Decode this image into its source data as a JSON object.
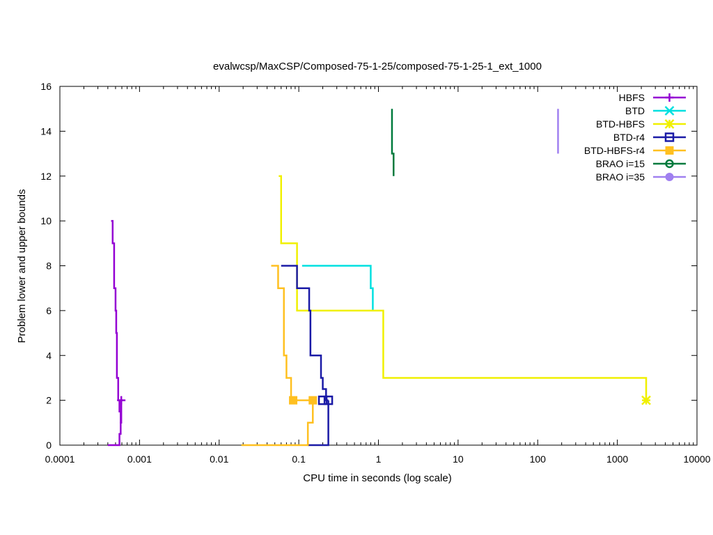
{
  "chart_data": {
    "type": "line",
    "title": "evalwcsp/MaxCSP/Composed-75-1-25/composed-75-1-25-1_ext_1000",
    "xlabel": "CPU time in seconds (log scale)",
    "ylabel": "Problem lower and upper bounds",
    "xscale": "log",
    "xlim": [
      0.0001,
      10000
    ],
    "ylim": [
      0,
      16
    ],
    "x_ticks": [
      0.0001,
      0.001,
      0.01,
      0.1,
      1,
      10,
      100,
      1000,
      10000
    ],
    "x_tick_labels": [
      "0.0001",
      "0.001",
      "0.01",
      "0.1",
      "1",
      "10",
      "100",
      "1000",
      "10000"
    ],
    "y_ticks": [
      0,
      2,
      4,
      6,
      8,
      10,
      12,
      14,
      16
    ],
    "y_tick_labels": [
      "0",
      "2",
      "4",
      "6",
      "8",
      "10",
      "12",
      "14",
      "16"
    ],
    "grid": false,
    "legend_position": "top-right",
    "series": [
      {
        "name": "HBFS",
        "color": "#9400d3",
        "marker": "plus",
        "upper": [
          [
            0.00044,
            10
          ],
          [
            0.00046,
            10
          ],
          [
            0.00046,
            9
          ],
          [
            0.00048,
            9
          ],
          [
            0.00048,
            7
          ],
          [
            0.0005,
            7
          ],
          [
            0.0005,
            6
          ],
          [
            0.00051,
            6
          ],
          [
            0.00051,
            5
          ],
          [
            0.00052,
            5
          ],
          [
            0.00052,
            3
          ],
          [
            0.00054,
            3
          ],
          [
            0.00054,
            2
          ],
          [
            0.00056,
            2
          ],
          [
            0.00056,
            1.5
          ],
          [
            0.00058,
            1.5
          ],
          [
            0.00058,
            1
          ],
          [
            0.00059,
            1
          ],
          [
            0.00059,
            2
          ],
          [
            0.00063,
            2
          ]
        ],
        "lower": [
          [
            0.0004,
            0
          ],
          [
            0.00056,
            0
          ],
          [
            0.00056,
            0.5
          ],
          [
            0.00058,
            0.5
          ],
          [
            0.00058,
            1
          ],
          [
            0.00059,
            1
          ]
        ],
        "markers": [
          [
            0.00059,
            2
          ]
        ]
      },
      {
        "name": "BTD",
        "color": "#00e0e0",
        "marker": "cross",
        "upper": [
          [
            0.11,
            8
          ],
          [
            0.8,
            8
          ],
          [
            0.8,
            7
          ],
          [
            0.85,
            7
          ],
          [
            0.85,
            6
          ]
        ],
        "lower": [],
        "markers": []
      },
      {
        "name": "BTD-HBFS",
        "color": "#f0f000",
        "marker": "star",
        "upper": [
          [
            0.056,
            12
          ],
          [
            0.06,
            12
          ],
          [
            0.06,
            9
          ],
          [
            0.095,
            9
          ],
          [
            0.095,
            6
          ],
          [
            1.15,
            6
          ],
          [
            1.15,
            3
          ],
          [
            2300,
            3
          ],
          [
            2300,
            2
          ]
        ],
        "lower": [],
        "markers": [
          [
            2300,
            2
          ]
        ]
      },
      {
        "name": "BTD-r4",
        "color": "#1a1aa6",
        "marker": "square",
        "upper": [
          [
            0.06,
            8
          ],
          [
            0.095,
            8
          ],
          [
            0.095,
            7
          ],
          [
            0.135,
            7
          ],
          [
            0.135,
            6
          ],
          [
            0.14,
            6
          ],
          [
            0.14,
            4
          ],
          [
            0.19,
            4
          ],
          [
            0.19,
            3
          ],
          [
            0.2,
            3
          ],
          [
            0.2,
            2.5
          ],
          [
            0.22,
            2.5
          ],
          [
            0.22,
            2
          ],
          [
            0.235,
            2
          ]
        ],
        "lower": [
          [
            0.13,
            0
          ],
          [
            0.235,
            0
          ],
          [
            0.235,
            2
          ]
        ],
        "markers": [
          [
            0.2,
            2
          ],
          [
            0.235,
            2
          ]
        ]
      },
      {
        "name": "BTD-HBFS-r4",
        "color": "#ffc020",
        "marker": "filled-square",
        "upper": [
          [
            0.045,
            8
          ],
          [
            0.055,
            8
          ],
          [
            0.055,
            7
          ],
          [
            0.065,
            7
          ],
          [
            0.065,
            4
          ],
          [
            0.07,
            4
          ],
          [
            0.07,
            3
          ],
          [
            0.08,
            3
          ],
          [
            0.08,
            2
          ],
          [
            0.15,
            2
          ]
        ],
        "lower": [
          [
            0.019,
            0
          ],
          [
            0.13,
            0
          ],
          [
            0.13,
            1
          ],
          [
            0.15,
            1
          ],
          [
            0.15,
            2
          ]
        ],
        "markers": [
          [
            0.085,
            2
          ],
          [
            0.15,
            2
          ]
        ]
      },
      {
        "name": "BRAO i=15",
        "color": "#007a3d",
        "marker": "circle",
        "upper": [
          [
            1.48,
            15
          ],
          [
            1.48,
            13
          ],
          [
            1.55,
            13
          ],
          [
            1.55,
            12
          ]
        ],
        "lower": [],
        "markers": []
      },
      {
        "name": "BRAO i=35",
        "color": "#a080f0",
        "marker": "filled-circle",
        "upper": [
          [
            180,
            15
          ],
          [
            180,
            13
          ]
        ],
        "lower": [],
        "markers": []
      }
    ]
  }
}
